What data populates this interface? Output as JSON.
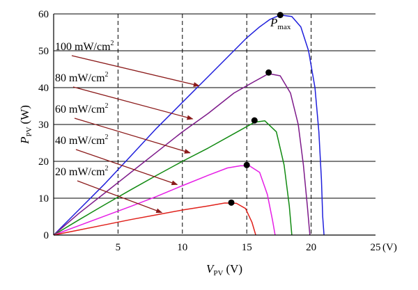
{
  "chart_data": {
    "type": "line",
    "title": "",
    "xlabel": {
      "main": "V",
      "sub": "PV",
      "unit": "(V)"
    },
    "ylabel": {
      "main": "P",
      "sub": "PV",
      "unit": "(W)"
    },
    "xlim": [
      0,
      25
    ],
    "ylim": [
      0,
      60
    ],
    "x_ticks": [
      5,
      10,
      15,
      20,
      25
    ],
    "y_ticks": [
      0,
      10,
      20,
      30,
      40,
      50,
      60
    ],
    "x_unit_label": "(V)",
    "grid": {
      "horizontal": "solid",
      "vertical_dashed_at": [
        5,
        10,
        15,
        20
      ]
    },
    "series": [
      {
        "name": "100 mW/cm2",
        "color": "#1f1fdc",
        "x": [
          0,
          2,
          4,
          6,
          8,
          10,
          12,
          14,
          15,
          16,
          16.8,
          17.6,
          18.5,
          19.2,
          19.8,
          20.3,
          20.6,
          20.8,
          20.9,
          21.0
        ],
        "y": [
          0,
          7,
          14,
          21.5,
          29,
          36,
          43,
          50,
          53.5,
          56.5,
          58.5,
          59.7,
          59.3,
          56.5,
          50,
          40,
          28,
          15,
          5,
          0
        ],
        "pmax": [
          17.6,
          59.7
        ]
      },
      {
        "name": "80 mW/cm2",
        "color": "#7d1a8a",
        "x": [
          0,
          2,
          4,
          6,
          8,
          10,
          12,
          14,
          15.5,
          16.7,
          17.6,
          18.4,
          19.0,
          19.4,
          19.7,
          19.9
        ],
        "y": [
          0,
          6,
          11.5,
          17,
          22.5,
          28,
          33,
          38.5,
          41.5,
          43.8,
          43.2,
          38.5,
          30,
          19,
          8,
          0
        ],
        "pmax": [
          16.7,
          44.1
        ]
      },
      {
        "name": "60 mW/cm2",
        "color": "#118a11",
        "x": [
          0,
          2,
          4,
          6,
          8,
          10,
          12,
          14,
          15.6,
          16.4,
          17.3,
          17.9,
          18.3,
          18.5
        ],
        "y": [
          0,
          4.2,
          8.3,
          12.3,
          16.2,
          20,
          23.6,
          27.5,
          30.6,
          31,
          28,
          19,
          8,
          0
        ],
        "pmax": [
          15.6,
          31.1
        ]
      },
      {
        "name": "40 mW/cm2",
        "color": "#e61ee6",
        "x": [
          0,
          2,
          4,
          6,
          8,
          10,
          12,
          13.5,
          14.5,
          15.2,
          16.0,
          16.6,
          17.0,
          17.2
        ],
        "y": [
          0,
          2.6,
          5.2,
          7.8,
          10.5,
          13.4,
          16.2,
          18.2,
          18.8,
          18.8,
          17,
          11,
          4,
          0
        ],
        "pmax": [
          15.0,
          19.0
        ]
      },
      {
        "name": "20 mW/cm2",
        "color": "#e0201a",
        "x": [
          0,
          2,
          4,
          6,
          8,
          10,
          12,
          13.3,
          14.2,
          14.9,
          15.4,
          15.7
        ],
        "y": [
          0,
          1.4,
          2.8,
          4.2,
          5.5,
          6.8,
          7.9,
          8.7,
          8.6,
          7.2,
          3.5,
          0
        ],
        "pmax": [
          13.8,
          8.8
        ]
      }
    ],
    "annotations": [
      {
        "label": "100 mW/cm",
        "sup": "2",
        "series": "100 mW/cm2",
        "arrow_to": [
          11.3,
          40.5
        ]
      },
      {
        "label": "80 mW/cm",
        "sup": "2",
        "series": "80 mW/cm2",
        "arrow_to": [
          10.8,
          31.5
        ]
      },
      {
        "label": "60 mW/cm",
        "sup": "2",
        "series": "60 mW/cm2",
        "arrow_to": [
          10.6,
          22.3
        ]
      },
      {
        "label": "40 mW/cm",
        "sup": "2",
        "series": "40 mW/cm2",
        "arrow_to": [
          9.6,
          13.7
        ]
      },
      {
        "label": "20 mW/cm",
        "sup": "2",
        "series": "20 mW/cm2",
        "arrow_to": [
          8.4,
          6.1
        ]
      }
    ],
    "pmax_label": {
      "main": "P",
      "sub": "max"
    },
    "arrow_color": "#8b1a1a",
    "marker_color": "#000000"
  }
}
